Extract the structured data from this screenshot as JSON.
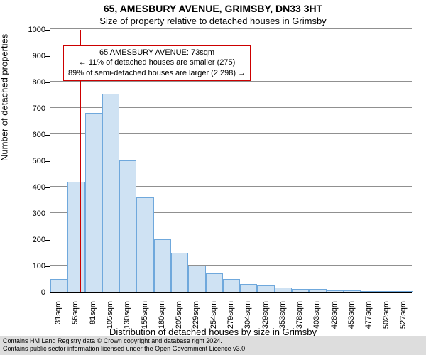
{
  "title": "65, AMESBURY AVENUE, GRIMSBY, DN33 3HT",
  "subtitle": "Size of property relative to detached houses in Grimsby",
  "chart": {
    "type": "histogram",
    "x_categories": [
      "31sqm",
      "56sqm",
      "81sqm",
      "105sqm",
      "130sqm",
      "155sqm",
      "180sqm",
      "205sqm",
      "229sqm",
      "254sqm",
      "279sqm",
      "304sqm",
      "329sqm",
      "353sqm",
      "378sqm",
      "403sqm",
      "428sqm",
      "453sqm",
      "477sqm",
      "502sqm",
      "527sqm"
    ],
    "values": [
      50,
      420,
      680,
      755,
      500,
      360,
      200,
      150,
      100,
      70,
      50,
      30,
      25,
      15,
      10,
      12,
      5,
      5,
      4,
      3,
      3
    ],
    "bar_fill": "#cfe2f3",
    "bar_border": "#6fa8dc",
    "grid_color": "#909090",
    "background": "#ffffff",
    "y": {
      "min": 0,
      "max": 1000,
      "step": 100,
      "label": "Number of detached properties"
    },
    "x": {
      "label": "Distribution of detached houses by size in Grimsby"
    },
    "reference_line": {
      "value_sqm": 73,
      "color": "#cc0000",
      "bin_index_left_of": 1
    },
    "annotation": {
      "line1": "65 AMESBURY AVENUE: 73sqm",
      "line2": "← 11% of detached houses are smaller (275)",
      "line3": "89% of semi-detached houses are larger (2,298) →",
      "border_color": "#cc0000"
    },
    "title_fontsize": 14,
    "subtitle_fontsize": 13,
    "axis_label_fontsize": 13,
    "tick_fontsize": 11
  },
  "footer": {
    "line1": "Contains HM Land Registry data © Crown copyright and database right 2024.",
    "line2": "Contains public sector information licensed under the Open Government Licence v3.0.",
    "background": "#dddddd"
  }
}
